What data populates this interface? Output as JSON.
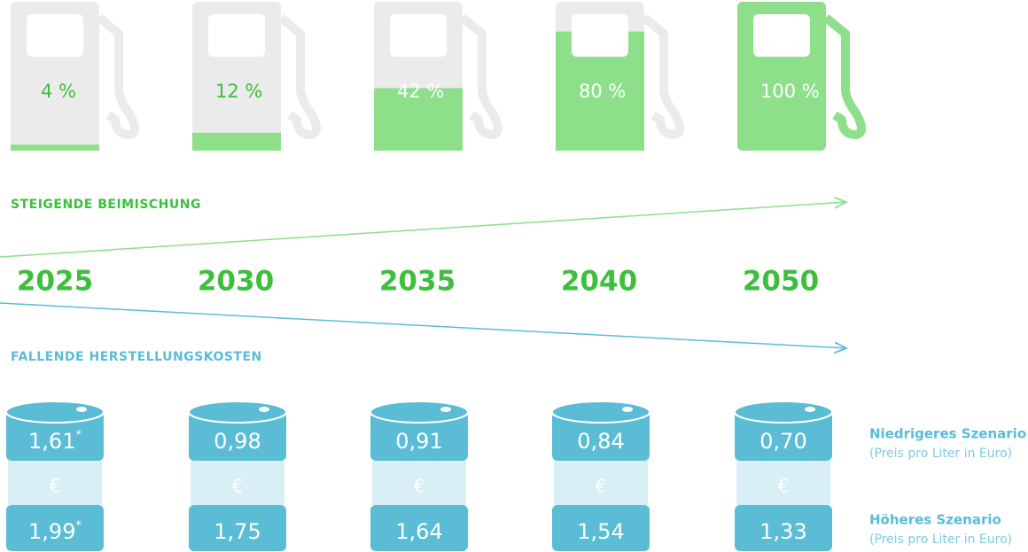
{
  "pumps": [
    {
      "label": "4 %",
      "value": 4
    },
    {
      "label": "12 %",
      "value": 12
    },
    {
      "label": "42 %",
      "value": 42
    },
    {
      "label": "80 %",
      "value": 80
    },
    {
      "label": "100 %",
      "value": 100
    }
  ],
  "blend_heading": "STEIGENDE BEIMISCHUNG",
  "years": [
    "2025",
    "2030",
    "2035",
    "2040",
    "2050"
  ],
  "cost_heading": "FALLENDE HERSTELLUNGSKOSTEN",
  "currency_symbol": "€",
  "barrels": [
    {
      "low": "1,61",
      "low_note": "*",
      "high": "1,99",
      "high_note": "*"
    },
    {
      "low": "0,98",
      "high": "1,75"
    },
    {
      "low": "0,91",
      "high": "1,64"
    },
    {
      "low": "0,84",
      "high": "1,54"
    },
    {
      "low": "0,70",
      "high": "1,33"
    }
  ],
  "legend": {
    "low_title": "Niedrigeres Szenario",
    "low_sub": "(Preis pro Liter in Euro)",
    "high_title": "Höheres Szenario",
    "high_sub": "(Preis pro Liter in Euro)"
  }
}
